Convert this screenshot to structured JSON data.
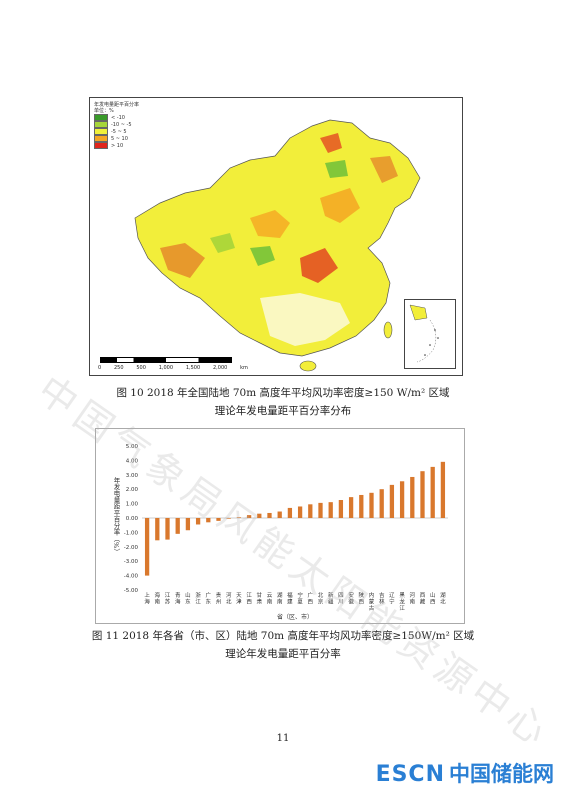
{
  "map": {
    "legend_title": "年发电量距平百分率",
    "legend_unit": "单位：%",
    "legend": [
      {
        "label": "< -10",
        "color": "#3a9b2a"
      },
      {
        "label": "-10 ~ -5",
        "color": "#a6d43a"
      },
      {
        "label": "-5 ~ 5",
        "color": "#f0f03a"
      },
      {
        "label": "5 ~ 10",
        "color": "#f5a623"
      },
      {
        "label": "> 10",
        "color": "#e0251b"
      }
    ],
    "scale": [
      "0",
      "250",
      "500",
      "1,000",
      "1,500",
      "2,000"
    ],
    "scale_unit": "km"
  },
  "fig10_caption_line1": "图 10    2018 年全国陆地 70m 高度年平均风功率密度≥150 W/m² 区域",
  "fig10_caption_line2": "理论年发电量距平百分率分布",
  "chart_data": {
    "type": "bar",
    "ylabel": "年发电量距平百分率（%）",
    "xlabel": "省（区、市）",
    "ylim": [
      -5,
      5
    ],
    "yticks": [
      "5.00",
      "4.00",
      "3.00",
      "2.00",
      "1.00",
      "0.00",
      "-1.00",
      "-2.00",
      "-3.00",
      "-4.00",
      "-5.00"
    ],
    "bar_color": "#d9782d",
    "categories": [
      "上海",
      "海南",
      "江苏",
      "青海",
      "山东",
      "浙江",
      "广东",
      "贵州",
      "河北",
      "天津",
      "江西",
      "甘肃",
      "云南",
      "湖南",
      "福建",
      "宁夏",
      "广西",
      "北京",
      "新疆",
      "四川",
      "安徽",
      "陕西",
      "内蒙古",
      "吉林",
      "辽宁",
      "黑龙江",
      "河南",
      "西藏",
      "山西",
      "湖北"
    ],
    "values": [
      -4.0,
      -1.55,
      -1.5,
      -1.1,
      -0.85,
      -0.45,
      -0.3,
      -0.2,
      -0.05,
      0.05,
      0.2,
      0.3,
      0.35,
      0.45,
      0.7,
      0.8,
      0.95,
      1.05,
      1.1,
      1.25,
      1.45,
      1.6,
      1.75,
      2.0,
      2.3,
      2.55,
      2.85,
      3.25,
      3.55,
      3.9
    ]
  },
  "fig11_caption_line1": "图 11    2018 年各省（市、区）陆地 70m 高度年平均风功率密度≥150W/m² 区域",
  "fig11_caption_line2": "理论年发电量距平百分率",
  "page_number": "11",
  "watermark": "中国气象局风能太阳能资源中心",
  "logo": {
    "en": "ESCN",
    "cn": "中国储能网"
  }
}
